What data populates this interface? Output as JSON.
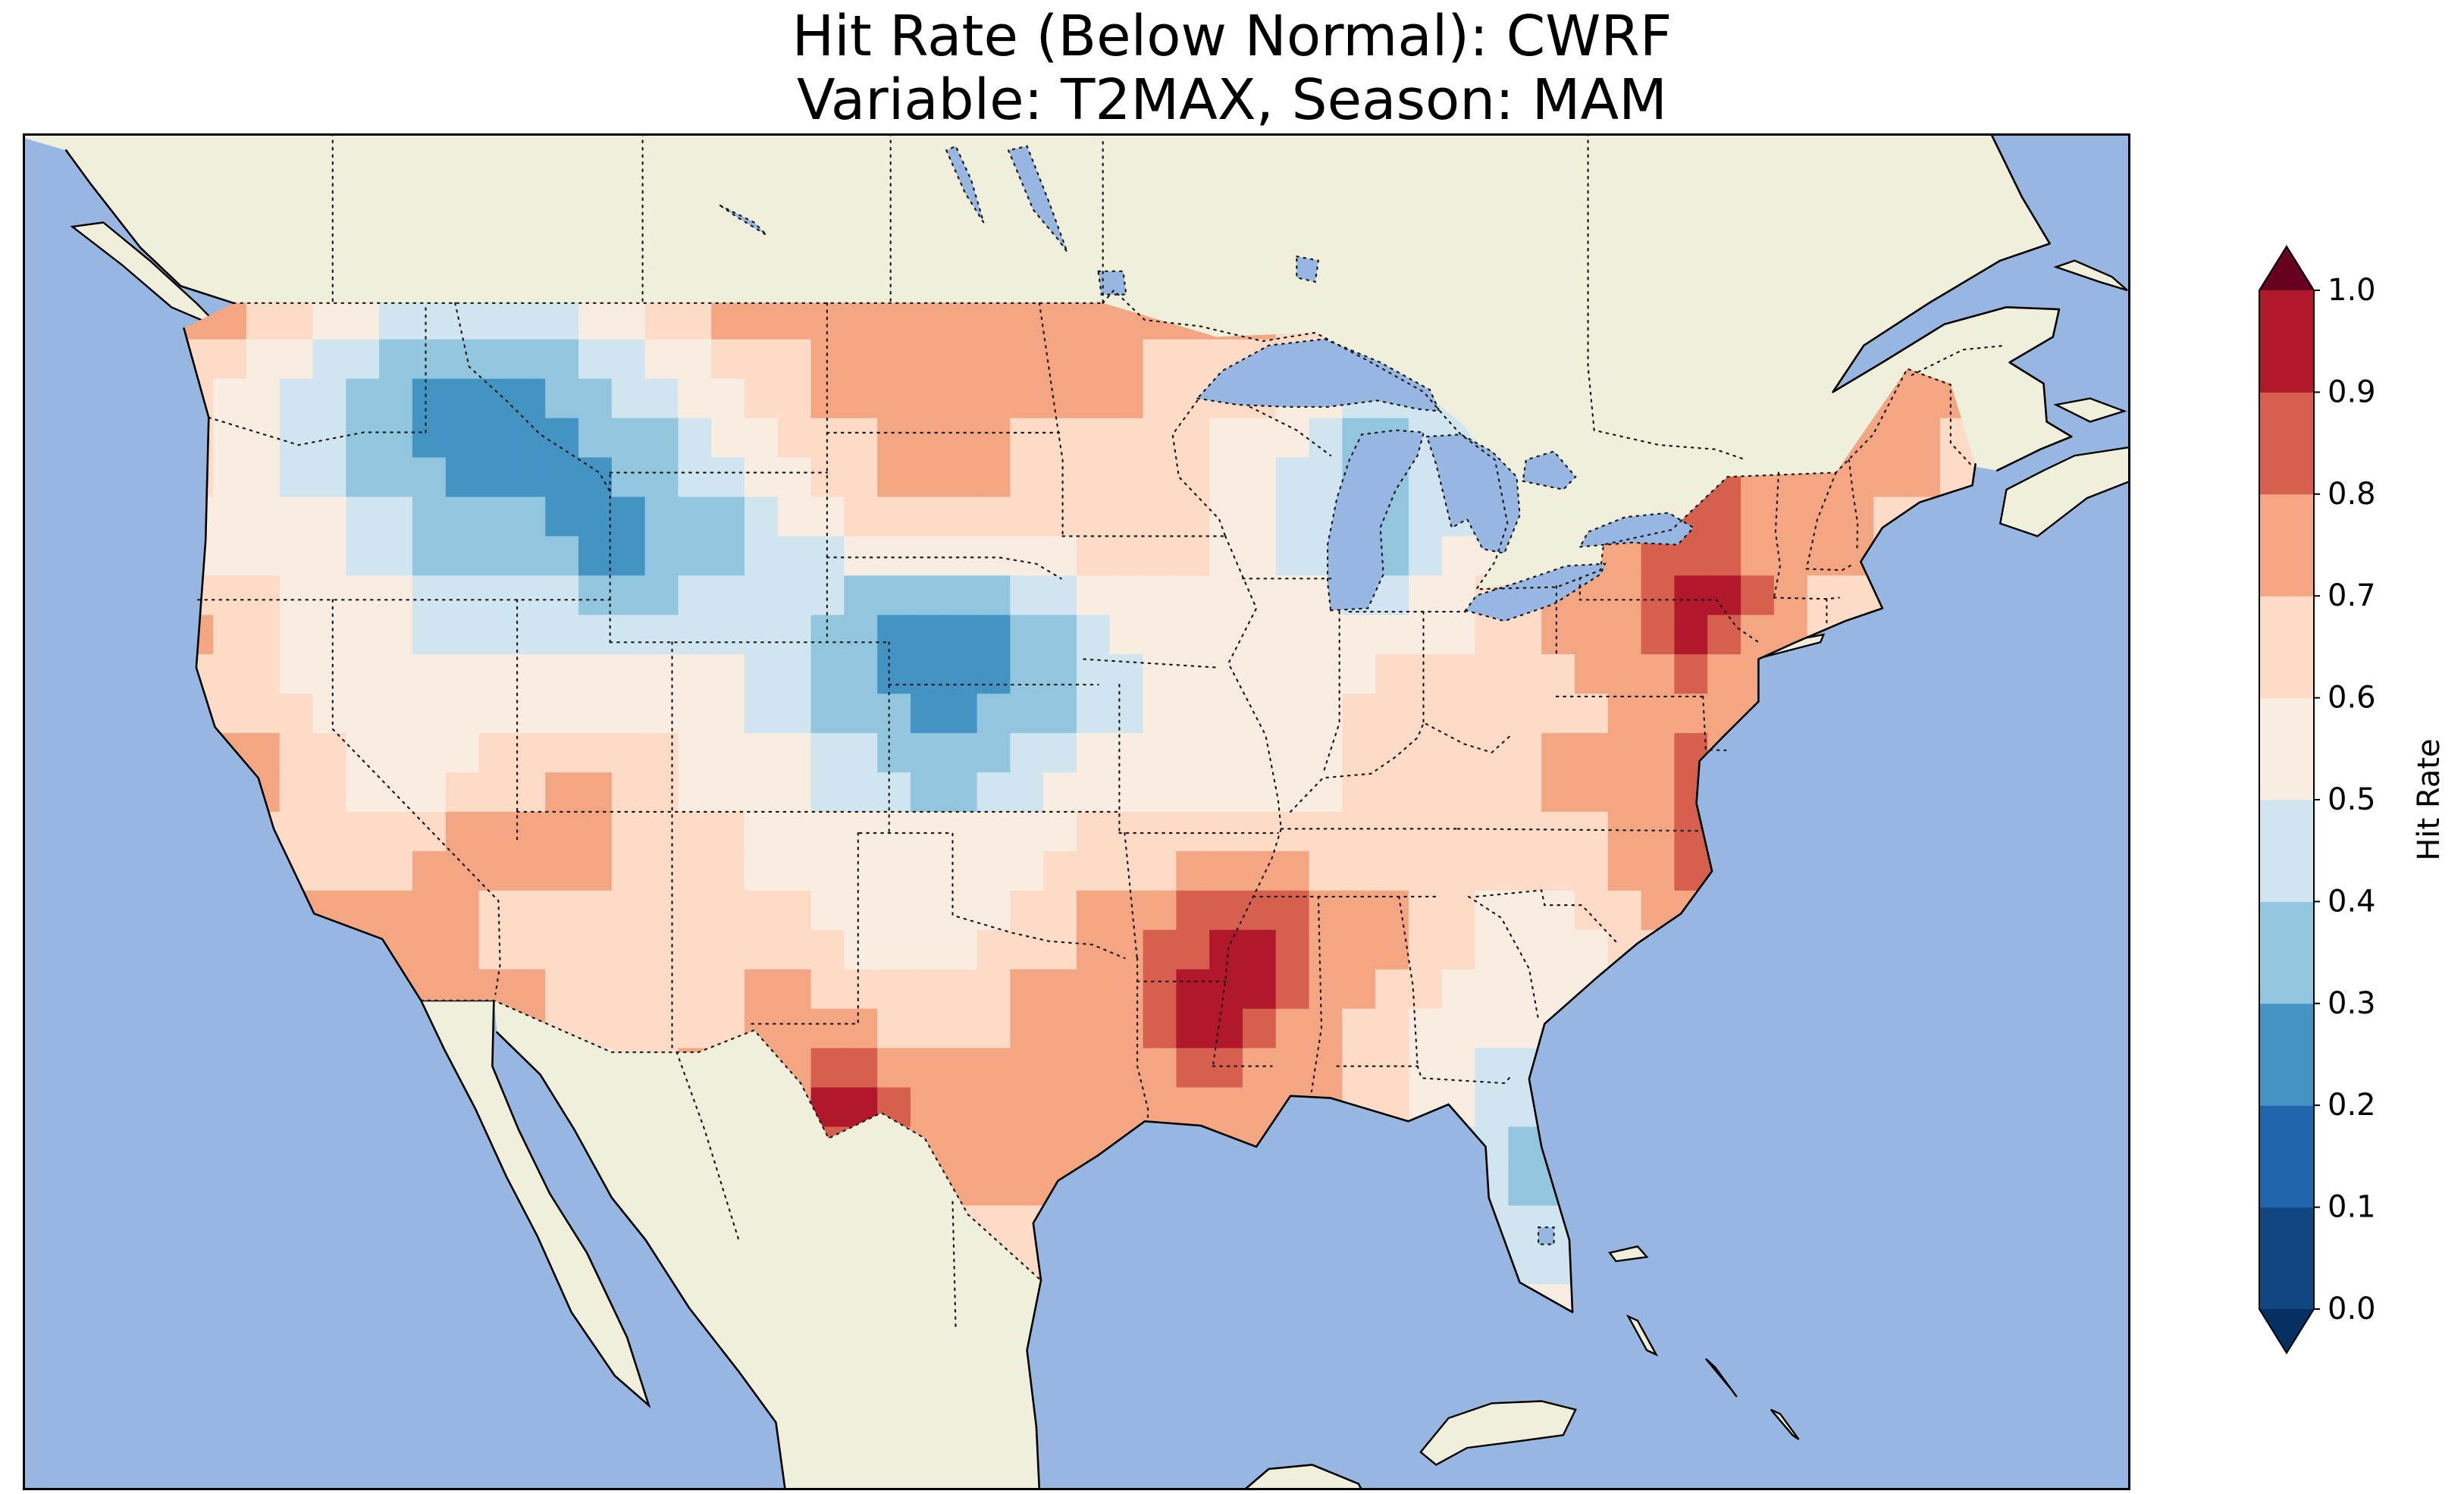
{
  "figure": {
    "title_line1": "Hit Rate (Below Normal): CWRF",
    "title_line2": "Variable: T2MAX, Season: MAM"
  },
  "chart_data": {
    "type": "heatmap",
    "title": "Hit Rate (Below Normal): CWRF",
    "subtitle": "Variable: T2MAX, Season: MAM",
    "metric": "Hit Rate (Below Normal)",
    "model": "CWRF",
    "variable": "T2MAX",
    "season": "MAM",
    "region": "Continental United States",
    "colorbar": {
      "label": "Hit Rate",
      "ticks": [
        0.0,
        0.1,
        0.2,
        0.3,
        0.4,
        0.5,
        0.6,
        0.7,
        0.8,
        0.9,
        1.0
      ],
      "levels": [
        0.0,
        0.1,
        0.2,
        0.3,
        0.4,
        0.5,
        0.6,
        0.7,
        0.8,
        0.9,
        1.0
      ],
      "extend": "both"
    },
    "colors": {
      "ocean": "#97b6e1",
      "land": "#efefdb",
      "under": "#053061",
      "over": "#67001f",
      "bins": [
        "#114781",
        "#2166ac",
        "#4393c3",
        "#92c5de",
        "#d1e5f0",
        "#f9ece1",
        "#fddbc7",
        "#f4a582",
        "#d6604d",
        "#b2182b"
      ],
      "coastline": "#000000",
      "borders": "#1a1a1a",
      "frame": "#000000"
    },
    "grid": {
      "lon_min": -126,
      "lon_max": -66,
      "lat_min": 24,
      "lat_max": 50,
      "ncols": 28,
      "nrows": 14,
      "order": "north_to_south",
      "values": [
        [
          0.75,
          0.75,
          0.65,
          0.55,
          0.45,
          0.45,
          0.55,
          0.65,
          0.75,
          0.75,
          0.75,
          0.75,
          0.75,
          0.75,
          0.75,
          0.75,
          0.75,
          0.65,
          0.55,
          0.55,
          0.55,
          0.65,
          0.65,
          0.65,
          0.65,
          0.75,
          0.85,
          0.75
        ],
        [
          0.65,
          0.55,
          0.45,
          0.35,
          0.25,
          0.25,
          0.35,
          0.45,
          0.55,
          0.65,
          0.75,
          0.75,
          0.75,
          0.75,
          0.75,
          0.65,
          0.65,
          0.55,
          0.45,
          0.45,
          0.55,
          0.65,
          0.65,
          0.65,
          0.65,
          0.65,
          0.75,
          0.75
        ],
        [
          0.65,
          0.55,
          0.45,
          0.35,
          0.25,
          0.25,
          0.25,
          0.35,
          0.45,
          0.55,
          0.65,
          0.75,
          0.75,
          0.65,
          0.65,
          0.65,
          0.55,
          0.45,
          0.35,
          0.45,
          0.55,
          0.65,
          0.75,
          0.85,
          0.75,
          0.75,
          0.75,
          0.65
        ],
        [
          0.55,
          0.55,
          0.55,
          0.45,
          0.35,
          0.35,
          0.25,
          0.25,
          0.35,
          0.45,
          0.55,
          0.65,
          0.65,
          0.65,
          0.65,
          0.65,
          0.55,
          0.45,
          0.35,
          0.45,
          0.55,
          0.65,
          0.75,
          0.85,
          0.75,
          0.75,
          0.65,
          0.65
        ],
        [
          0.75,
          0.65,
          0.55,
          0.55,
          0.45,
          0.45,
          0.45,
          0.35,
          0.45,
          0.45,
          0.35,
          0.25,
          0.25,
          0.35,
          0.55,
          0.55,
          0.55,
          0.55,
          0.45,
          0.55,
          0.65,
          0.75,
          0.85,
          1.0,
          0.75,
          0.65,
          null,
          null
        ],
        [
          0.65,
          0.65,
          0.55,
          0.55,
          0.55,
          0.55,
          0.55,
          0.55,
          0.55,
          0.45,
          0.35,
          0.25,
          0.25,
          0.35,
          0.45,
          0.55,
          0.55,
          0.55,
          0.65,
          0.65,
          0.65,
          0.65,
          0.75,
          0.75,
          0.65,
          null,
          null,
          null
        ],
        [
          0.75,
          0.85,
          0.65,
          0.55,
          0.55,
          0.65,
          0.75,
          0.65,
          0.55,
          0.55,
          0.45,
          0.35,
          0.35,
          0.45,
          0.55,
          0.55,
          0.55,
          0.55,
          0.65,
          0.65,
          0.65,
          0.75,
          0.75,
          0.85,
          null,
          null,
          null,
          null
        ],
        [
          0.65,
          0.65,
          0.65,
          0.65,
          0.75,
          0.75,
          0.75,
          0.65,
          0.65,
          0.55,
          0.55,
          0.55,
          0.55,
          0.55,
          0.65,
          0.65,
          0.65,
          0.65,
          0.65,
          0.65,
          0.65,
          0.65,
          0.75,
          0.95,
          null,
          null,
          null,
          null
        ],
        [
          null,
          0.65,
          0.75,
          0.75,
          0.75,
          0.65,
          0.65,
          0.65,
          0.65,
          0.65,
          0.55,
          0.55,
          0.55,
          0.65,
          0.75,
          0.85,
          0.95,
          0.85,
          0.75,
          0.65,
          0.55,
          0.55,
          0.65,
          null,
          null,
          null,
          null,
          null
        ],
        [
          null,
          null,
          0.65,
          0.75,
          0.75,
          0.75,
          0.65,
          0.65,
          0.65,
          0.75,
          0.65,
          0.65,
          0.65,
          0.75,
          0.75,
          0.95,
          1.0,
          0.75,
          0.65,
          0.55,
          0.55,
          0.55,
          null,
          null,
          null,
          null,
          null,
          null
        ],
        [
          null,
          null,
          null,
          null,
          null,
          null,
          0.55,
          0.65,
          0.75,
          0.75,
          1.0,
          0.75,
          0.75,
          0.75,
          0.75,
          0.75,
          0.75,
          0.75,
          0.65,
          0.55,
          0.45,
          0.45,
          null,
          null,
          null,
          null,
          null,
          null
        ],
        [
          null,
          null,
          null,
          null,
          null,
          null,
          null,
          null,
          null,
          null,
          null,
          0.75,
          0.75,
          0.75,
          null,
          null,
          null,
          null,
          null,
          null,
          0.35,
          0.35,
          null,
          null,
          null,
          null,
          null,
          null
        ],
        [
          null,
          null,
          null,
          null,
          null,
          null,
          null,
          null,
          null,
          null,
          null,
          null,
          0.65,
          0.65,
          null,
          null,
          null,
          null,
          null,
          null,
          0.45,
          0.45,
          null,
          null,
          null,
          null,
          null,
          null
        ],
        [
          null,
          null,
          null,
          null,
          null,
          null,
          null,
          null,
          null,
          null,
          null,
          null,
          null,
          null,
          null,
          null,
          null,
          null,
          null,
          null,
          null,
          0.55,
          null,
          null,
          null,
          null,
          null,
          null
        ]
      ]
    }
  }
}
